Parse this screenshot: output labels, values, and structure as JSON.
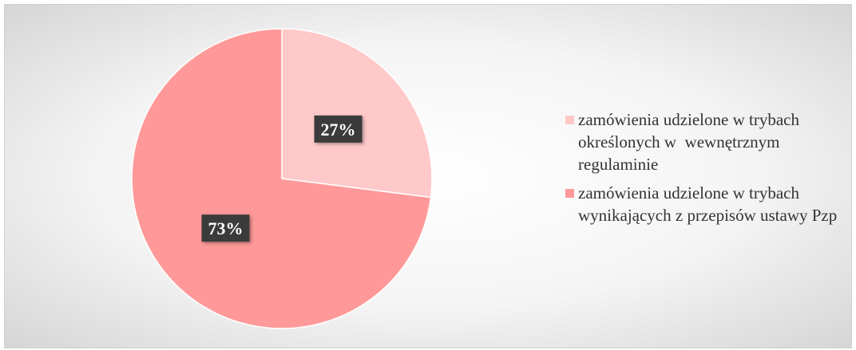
{
  "chart_data": {
    "type": "pie",
    "categories": [
      "zamówienia udzielone w trybach określonych w  wewnętrznym regulaminie",
      "zamówienia udzielone w trybach wynikających z przepisów ustawy Pzp"
    ],
    "values": [
      27,
      73
    ],
    "value_labels": [
      "27%",
      "73%"
    ],
    "colors": [
      "#ffc9c9",
      "#ff9999"
    ],
    "legend": "right"
  }
}
